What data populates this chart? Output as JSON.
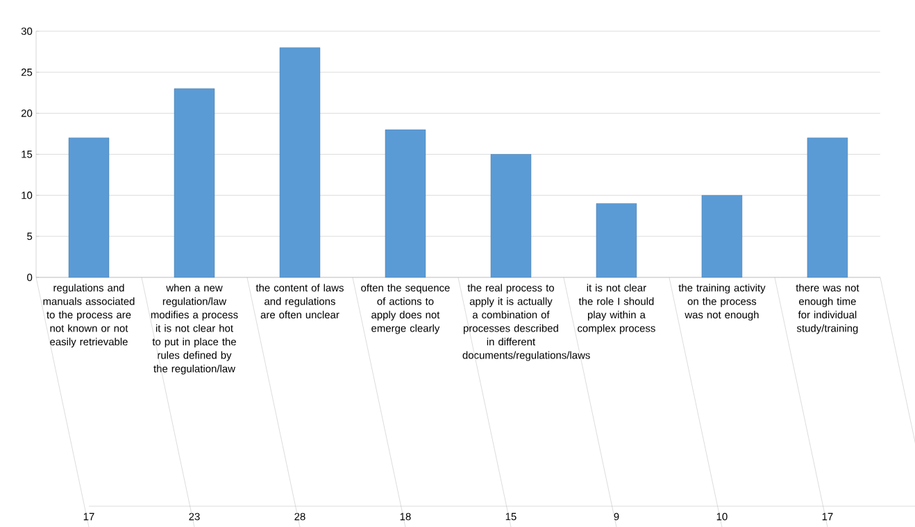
{
  "chart_data": {
    "type": "bar",
    "categories": [
      "regulations and manuals associated to the process are not known or not easily retrievable",
      "when a new regulation/law modifies a process it is not clear hot to put in place the rules defined by the regulation/law",
      "the content of laws and regulations are often unclear",
      "often the sequence of actions to apply does not emerge clearly",
      "the real process to apply it is actually a combination of processes described in different documents/regulations/laws",
      "it is not clear the role I should play within a complex process",
      "the training activity on the process was not enough",
      "there was not enough time for individual study/training"
    ],
    "values": [
      17,
      23,
      28,
      18,
      15,
      9,
      10,
      17
    ],
    "color": "#5b9bd5",
    "ylim": [
      0,
      30
    ],
    "yticks": [
      0,
      5,
      10,
      15,
      20,
      25,
      30
    ],
    "grid": "y",
    "data_labels": true
  }
}
